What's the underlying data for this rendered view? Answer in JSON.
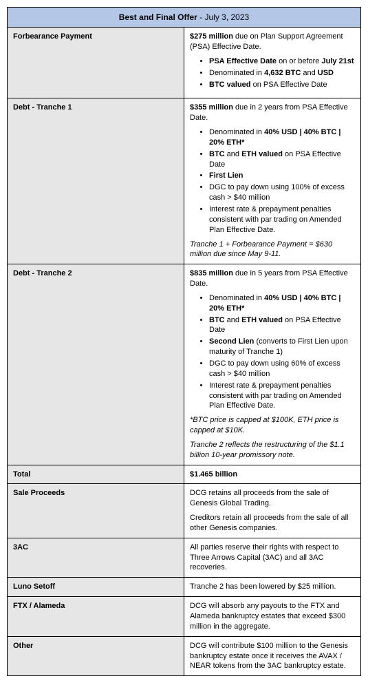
{
  "title_prefix": "Best and Final Offer",
  "title_date": " - July 3, 2023",
  "rows": {
    "forbearance": {
      "label": "Forbearance Payment",
      "lead_amount": "$275 million",
      "lead_rest": " due on Plan Support Agreement (PSA) Effective Date.",
      "b1_a": "PSA Effective Date",
      "b1_b": " on or before ",
      "b1_c": "July 21st",
      "b2_a": "Denominated in ",
      "b2_b": "4,632 BTC",
      "b2_c": " and ",
      "b2_d": "USD",
      "b3_a": "BTC valued",
      "b3_b": " on PSA Effective Date"
    },
    "tranche1": {
      "label": "Debt - Tranche 1",
      "lead_amount": "$355 million",
      "lead_rest": " due in 2 years from PSA Effective Date.",
      "b1_a": "Denominated in ",
      "b1_b": "40% USD | 40% BTC | 20% ETH*",
      "b2_a": "BTC",
      "b2_b": " and ",
      "b2_c": "ETH valued",
      "b2_d": " on PSA Effective Date",
      "b3": "First Lien",
      "b4": "DGC to pay down using 100% of excess cash > $40 million",
      "b5": "Interest rate & prepayment penalties consistent with par trading on Amended Plan Effective Date.",
      "note": "Tranche 1 + Forbearance Payment = $630 million due since May 9-11."
    },
    "tranche2": {
      "label": "Debt - Tranche 2",
      "lead_amount": "$835 million",
      "lead_rest": " due in 5 years from PSA Effective Date.",
      "b1_a": "Denominated in ",
      "b1_b": "40% USD | 40% BTC | 20% ETH*",
      "b2_a": "BTC",
      "b2_b": " and ",
      "b2_c": "ETH valued",
      "b2_d": " on PSA Effective Date",
      "b3_a": "Second Lien",
      "b3_b": " (converts to First Lien upon maturity of Tranche 1)",
      "b4": "DGC to pay down using 60% of excess cash > $40 million",
      "b5": "Interest rate & prepayment penalties consistent with par trading on Amended Plan Effective Date.",
      "note1": "*BTC price is capped at $100K, ETH price is capped at $10K.",
      "note2": "Tranche 2 reflects the restructuring of the $1.1 billion 10-year promissory note."
    },
    "total": {
      "label": "Total",
      "value": "$1.465 billion"
    },
    "sale": {
      "label": "Sale Proceeds",
      "p1": "DCG retains all proceeds from the sale of Genesis Global Trading.",
      "p2": "Creditors retain all proceeds from the sale of all other Genesis companies."
    },
    "threeac": {
      "label": "3AC",
      "p1": "All parties reserve their rights with respect to Three Arrows Capital (3AC) and all 3AC recoveries."
    },
    "luno": {
      "label": "Luno Setoff",
      "p1": "Tranche 2 has been lowered by $25 million."
    },
    "ftx": {
      "label": "FTX / Alameda",
      "p1": "DCG will absorb any payouts to the FTX and Alameda bankruptcy estates that exceed $300 million in the aggregate."
    },
    "other": {
      "label": "Other",
      "p1": "DCG will contribute $100 million to the Genesis bankruptcy estate once it receives the AVAX / NEAR tokens from the 3AC bankruptcy estate."
    }
  }
}
